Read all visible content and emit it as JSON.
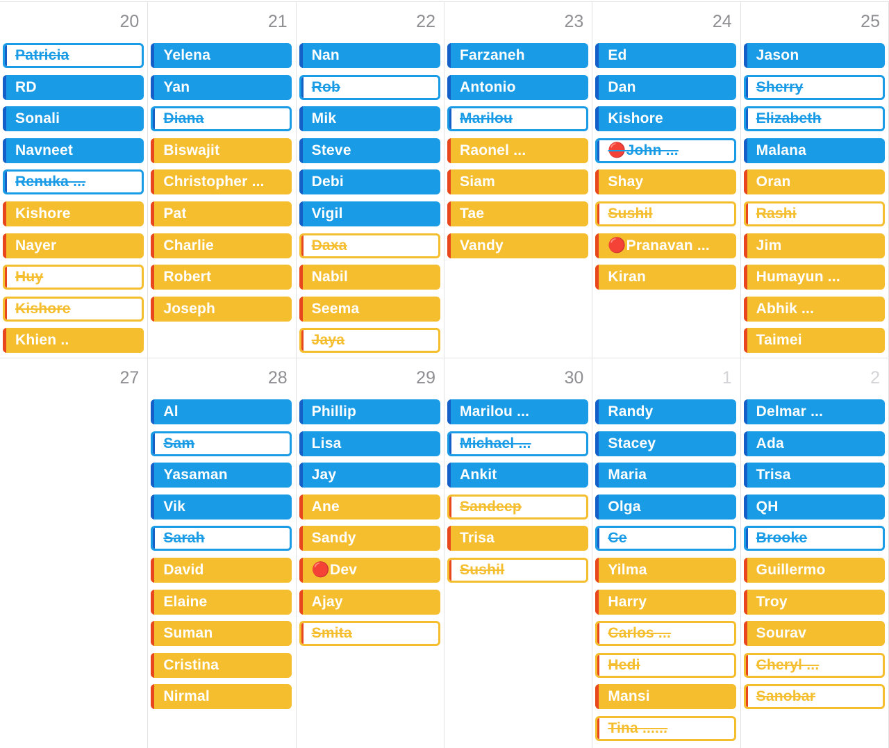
{
  "colors": {
    "blue": {
      "fill": "#1a9be6",
      "stripe": "#1460c8"
    },
    "yellow": {
      "fill": "#f5be2e",
      "stripe": "#e8461c"
    }
  },
  "weeks": [
    {
      "days": [
        {
          "date": "20",
          "events": [
            {
              "label": "Patricia",
              "kind": "blue",
              "done": true
            },
            {
              "label": "RD",
              "kind": "blue"
            },
            {
              "label": "Sonali",
              "kind": "blue"
            },
            {
              "label": "Navneet",
              "kind": "blue"
            },
            {
              "label": "Renuka ...",
              "kind": "blue",
              "done": true
            },
            {
              "label": "Kishore",
              "kind": "yellow"
            },
            {
              "label": "Nayer",
              "kind": "yellow"
            },
            {
              "label": "Huy",
              "kind": "yellow",
              "done": true
            },
            {
              "label": "Kishore",
              "kind": "yellow",
              "done": true
            },
            {
              "label": "Khien ..",
              "kind": "yellow"
            }
          ]
        },
        {
          "date": "21",
          "events": [
            {
              "label": "Yelena",
              "kind": "blue"
            },
            {
              "label": "Yan",
              "kind": "blue"
            },
            {
              "label": "Diana",
              "kind": "blue",
              "done": true
            },
            {
              "label": "Biswajit",
              "kind": "yellow"
            },
            {
              "label": "Christopher ...",
              "kind": "yellow"
            },
            {
              "label": "Pat",
              "kind": "yellow"
            },
            {
              "label": "Charlie",
              "kind": "yellow"
            },
            {
              "label": "Robert",
              "kind": "yellow"
            },
            {
              "label": "Joseph",
              "kind": "yellow"
            }
          ]
        },
        {
          "date": "22",
          "events": [
            {
              "label": "Nan",
              "kind": "blue"
            },
            {
              "label": "Rob",
              "kind": "blue",
              "done": true
            },
            {
              "label": "Mik",
              "kind": "blue"
            },
            {
              "label": "Steve",
              "kind": "blue"
            },
            {
              "label": "Debi",
              "kind": "blue"
            },
            {
              "label": "Vigil",
              "kind": "blue"
            },
            {
              "label": "Daxa",
              "kind": "yellow",
              "done": true
            },
            {
              "label": "Nabil",
              "kind": "yellow"
            },
            {
              "label": "Seema",
              "kind": "yellow"
            },
            {
              "label": "Jaya",
              "kind": "yellow",
              "done": true
            }
          ]
        },
        {
          "date": "23",
          "events": [
            {
              "label": "Farzaneh",
              "kind": "blue"
            },
            {
              "label": "Antonio",
              "kind": "blue"
            },
            {
              "label": "Marilou",
              "kind": "blue",
              "done": true
            },
            {
              "label": "Raonel ...",
              "kind": "yellow"
            },
            {
              "label": "Siam",
              "kind": "yellow"
            },
            {
              "label": "Tae",
              "kind": "yellow"
            },
            {
              "label": "Vandy",
              "kind": "yellow"
            }
          ]
        },
        {
          "date": "24",
          "events": [
            {
              "label": "Ed",
              "kind": "blue"
            },
            {
              "label": "Dan",
              "kind": "blue"
            },
            {
              "label": "Kishore",
              "kind": "blue"
            },
            {
              "label": "🔴John ...",
              "kind": "blue",
              "done": true
            },
            {
              "label": "Shay",
              "kind": "yellow"
            },
            {
              "label": "Sushil",
              "kind": "yellow",
              "done": true
            },
            {
              "label": "🔴Pranavan ...",
              "kind": "yellow"
            },
            {
              "label": "Kiran",
              "kind": "yellow"
            }
          ]
        },
        {
          "date": "25",
          "events": [
            {
              "label": "Jason",
              "kind": "blue"
            },
            {
              "label": "Sherry",
              "kind": "blue",
              "done": true
            },
            {
              "label": "Elizabeth",
              "kind": "blue",
              "done": true
            },
            {
              "label": "Malana",
              "kind": "blue"
            },
            {
              "label": "Oran",
              "kind": "yellow"
            },
            {
              "label": "Rashi",
              "kind": "yellow",
              "done": true
            },
            {
              "label": "Jim",
              "kind": "yellow"
            },
            {
              "label": "Humayun ...",
              "kind": "yellow"
            },
            {
              "label": "Abhik ...",
              "kind": "yellow"
            },
            {
              "label": "Taimei",
              "kind": "yellow"
            }
          ]
        }
      ]
    },
    {
      "days": [
        {
          "date": "27",
          "events": []
        },
        {
          "date": "28",
          "events": [
            {
              "label": "Al",
              "kind": "blue"
            },
            {
              "label": "Sam",
              "kind": "blue",
              "done": true
            },
            {
              "label": "Yasaman",
              "kind": "blue"
            },
            {
              "label": "Vik",
              "kind": "blue"
            },
            {
              "label": "Sarah",
              "kind": "blue",
              "done": true
            },
            {
              "label": "David",
              "kind": "yellow"
            },
            {
              "label": "Elaine",
              "kind": "yellow"
            },
            {
              "label": "Suman",
              "kind": "yellow"
            },
            {
              "label": "Cristina",
              "kind": "yellow"
            },
            {
              "label": "Nirmal",
              "kind": "yellow"
            }
          ]
        },
        {
          "date": "29",
          "events": [
            {
              "label": "Phillip",
              "kind": "blue"
            },
            {
              "label": "Lisa",
              "kind": "blue"
            },
            {
              "label": "Jay",
              "kind": "blue"
            },
            {
              "label": "Ane",
              "kind": "yellow"
            },
            {
              "label": "Sandy",
              "kind": "yellow"
            },
            {
              "label": "🔴Dev",
              "kind": "yellow"
            },
            {
              "label": "Ajay",
              "kind": "yellow"
            },
            {
              "label": "Smita",
              "kind": "yellow",
              "done": true
            }
          ]
        },
        {
          "date": "30",
          "events": [
            {
              "label": "Marilou ...",
              "kind": "blue"
            },
            {
              "label": "Michael ...",
              "kind": "blue",
              "done": true
            },
            {
              "label": "Ankit",
              "kind": "blue"
            },
            {
              "label": "Sandeep",
              "kind": "yellow",
              "done": true
            },
            {
              "label": "Trisa",
              "kind": "yellow"
            },
            {
              "label": "Sushil",
              "kind": "yellow",
              "done": true
            }
          ]
        },
        {
          "date": "1",
          "muted": true,
          "events": [
            {
              "label": "Randy",
              "kind": "blue"
            },
            {
              "label": "Stacey",
              "kind": "blue"
            },
            {
              "label": "Maria",
              "kind": "blue"
            },
            {
              "label": "Olga",
              "kind": "blue"
            },
            {
              "label": "Ce",
              "kind": "blue",
              "done": true
            },
            {
              "label": "Yilma",
              "kind": "yellow"
            },
            {
              "label": "Harry",
              "kind": "yellow"
            },
            {
              "label": "Carlos ...",
              "kind": "yellow",
              "done": true
            },
            {
              "label": "Hedi",
              "kind": "yellow",
              "done": true
            },
            {
              "label": "Mansi",
              "kind": "yellow"
            },
            {
              "label": "Tina ......",
              "kind": "yellow",
              "done": true
            }
          ]
        },
        {
          "date": "2",
          "muted": true,
          "events": [
            {
              "label": "Delmar ...",
              "kind": "blue"
            },
            {
              "label": "Ada",
              "kind": "blue"
            },
            {
              "label": "Trisa",
              "kind": "blue"
            },
            {
              "label": "QH",
              "kind": "blue"
            },
            {
              "label": "Brooke",
              "kind": "blue",
              "done": true
            },
            {
              "label": "Guillermo",
              "kind": "yellow"
            },
            {
              "label": "Troy",
              "kind": "yellow"
            },
            {
              "label": "Sourav",
              "kind": "yellow"
            },
            {
              "label": "Cheryl ...",
              "kind": "yellow",
              "done": true
            },
            {
              "label": "Sanobar",
              "kind": "yellow",
              "done": true
            }
          ]
        }
      ]
    }
  ]
}
